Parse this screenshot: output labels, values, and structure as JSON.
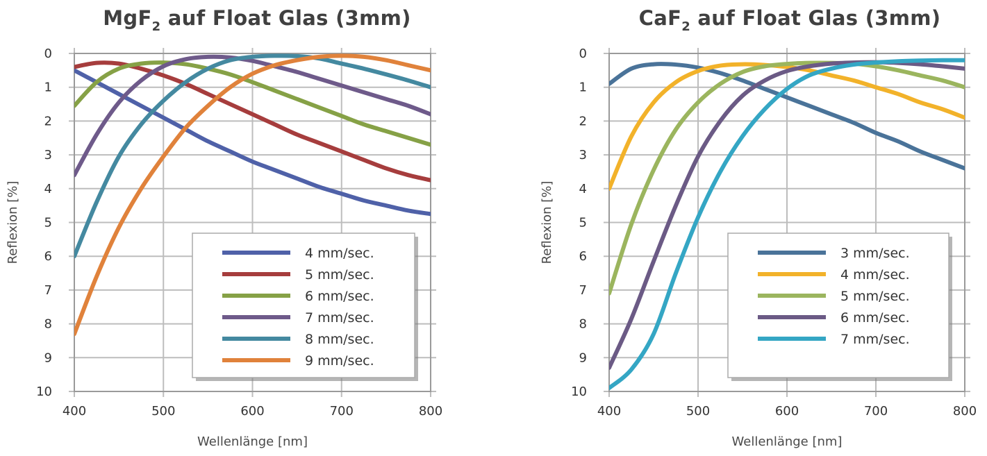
{
  "chart_data": [
    {
      "type": "line",
      "title": "MgF",
      "title_sub": "2",
      "title_rest": " auf Float Glas (3mm)",
      "xlabel": "Wellenlänge [nm]",
      "ylabel": "Reflexion [%]",
      "xlim": [
        400,
        800
      ],
      "ylim": [
        0,
        10
      ],
      "y_inverted": true,
      "grid": true,
      "legend_position": "bottom-right",
      "x_ticks": [
        "400",
        "500",
        "600",
        "700",
        "800"
      ],
      "y_ticks": [
        "0",
        "1",
        "2",
        "3",
        "4",
        "5",
        "6",
        "7",
        "8",
        "9",
        "10"
      ],
      "x": [
        400,
        425,
        450,
        475,
        500,
        525,
        550,
        575,
        600,
        625,
        650,
        675,
        700,
        725,
        750,
        775,
        800
      ],
      "series": [
        {
          "name": "4 mm/sec.",
          "color": "#4f61a8",
          "values": [
            0.5,
            0.85,
            1.2,
            1.55,
            1.9,
            2.25,
            2.6,
            2.9,
            3.2,
            3.45,
            3.7,
            3.95,
            4.15,
            4.35,
            4.5,
            4.65,
            4.75
          ]
        },
        {
          "name": "5 mm/sec.",
          "color": "#a63d3d",
          "values": [
            0.4,
            0.28,
            0.3,
            0.45,
            0.65,
            0.9,
            1.2,
            1.5,
            1.8,
            2.1,
            2.4,
            2.65,
            2.9,
            3.15,
            3.4,
            3.6,
            3.75
          ]
        },
        {
          "name": "6 mm/sec.",
          "color": "#86a146",
          "values": [
            1.55,
            0.85,
            0.45,
            0.3,
            0.27,
            0.32,
            0.45,
            0.62,
            0.85,
            1.1,
            1.35,
            1.6,
            1.85,
            2.1,
            2.3,
            2.5,
            2.7
          ]
        },
        {
          "name": "7 mm/sec.",
          "color": "#6e5a8a",
          "values": [
            3.6,
            2.4,
            1.45,
            0.8,
            0.38,
            0.17,
            0.1,
            0.12,
            0.22,
            0.38,
            0.55,
            0.75,
            0.95,
            1.15,
            1.35,
            1.55,
            1.8
          ]
        },
        {
          "name": "8 mm/sec.",
          "color": "#4489a0",
          "values": [
            6.0,
            4.4,
            3.05,
            2.1,
            1.4,
            0.85,
            0.45,
            0.2,
            0.1,
            0.07,
            0.08,
            0.15,
            0.3,
            0.45,
            0.62,
            0.8,
            1.0
          ]
        },
        {
          "name": "9 mm/sec.",
          "color": "#e0823b",
          "values": [
            8.3,
            6.6,
            5.15,
            4.0,
            3.05,
            2.2,
            1.55,
            1.0,
            0.6,
            0.35,
            0.2,
            0.1,
            0.07,
            0.1,
            0.2,
            0.35,
            0.5
          ]
        }
      ]
    },
    {
      "type": "line",
      "title": "CaF",
      "title_sub": "2",
      "title_rest": " auf Float Glas (3mm)",
      "xlabel": "Wellenlänge [nm]",
      "ylabel": "Reflexion [%]",
      "xlim": [
        400,
        800
      ],
      "ylim": [
        0,
        10
      ],
      "y_inverted": true,
      "grid": true,
      "legend_position": "bottom-right",
      "x_ticks": [
        "400",
        "500",
        "600",
        "700",
        "800"
      ],
      "y_ticks": [
        "0",
        "1",
        "2",
        "3",
        "4",
        "5",
        "6",
        "7",
        "8",
        "9",
        "10"
      ],
      "x": [
        400,
        425,
        450,
        475,
        500,
        525,
        550,
        575,
        600,
        625,
        650,
        675,
        700,
        725,
        750,
        775,
        800
      ],
      "series": [
        {
          "name": "3 mm/sec.",
          "color": "#4a7399",
          "values": [
            0.9,
            0.45,
            0.32,
            0.33,
            0.42,
            0.58,
            0.8,
            1.05,
            1.3,
            1.55,
            1.8,
            2.05,
            2.35,
            2.6,
            2.9,
            3.15,
            3.4
          ]
        },
        {
          "name": "4 mm/sec.",
          "color": "#f2b22a",
          "values": [
            4.0,
            2.45,
            1.45,
            0.85,
            0.52,
            0.36,
            0.32,
            0.34,
            0.4,
            0.5,
            0.65,
            0.8,
            1.0,
            1.2,
            1.45,
            1.65,
            1.9
          ]
        },
        {
          "name": "5 mm/sec.",
          "color": "#9bb55e",
          "values": [
            7.1,
            5.05,
            3.45,
            2.25,
            1.45,
            0.9,
            0.55,
            0.38,
            0.31,
            0.28,
            0.28,
            0.3,
            0.38,
            0.5,
            0.65,
            0.8,
            1.0
          ]
        },
        {
          "name": "6 mm/sec.",
          "color": "#6b5a85",
          "values": [
            9.3,
            7.85,
            6.15,
            4.5,
            3.05,
            2.0,
            1.25,
            0.8,
            0.52,
            0.38,
            0.3,
            0.27,
            0.26,
            0.28,
            0.32,
            0.38,
            0.45
          ]
        },
        {
          "name": "7 mm/sec.",
          "color": "#34a6c4",
          "values": [
            9.9,
            9.35,
            8.3,
            6.5,
            4.85,
            3.5,
            2.45,
            1.65,
            1.05,
            0.65,
            0.45,
            0.33,
            0.27,
            0.23,
            0.21,
            0.2,
            0.2
          ]
        }
      ]
    }
  ]
}
